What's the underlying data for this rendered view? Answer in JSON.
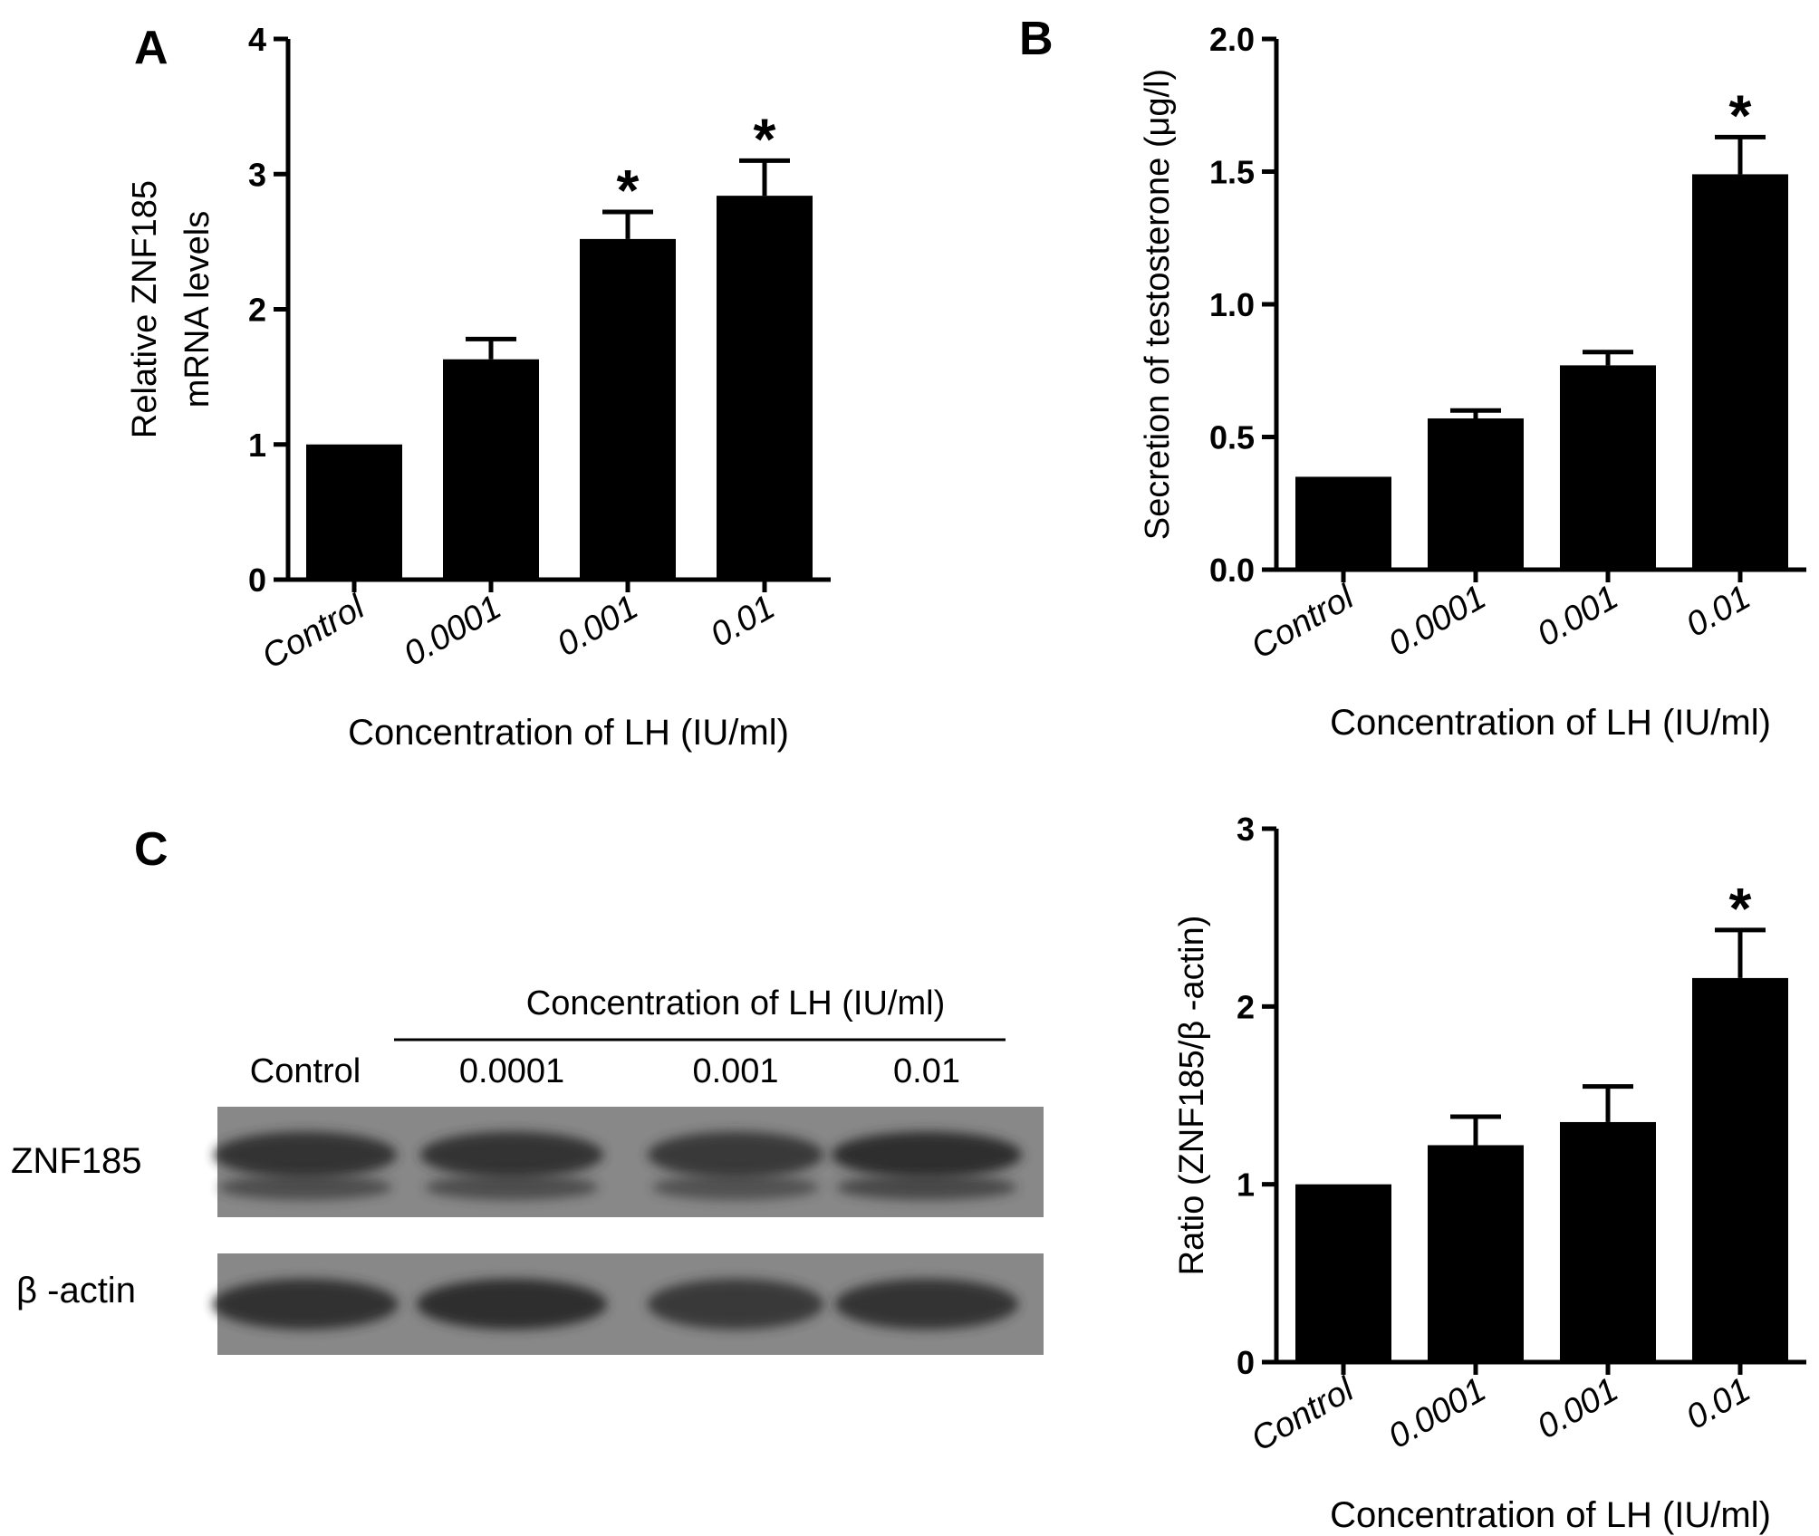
{
  "colors": {
    "bar": "#000000",
    "axis": "#000000",
    "blot_background": "#888888",
    "blot_band": "#2f2f2f"
  },
  "panels": {
    "A": {
      "letter": "A"
    },
    "B": {
      "letter": "B"
    },
    "C": {
      "letter": "C"
    }
  },
  "chart_data": [
    {
      "id": "A",
      "type": "bar",
      "categories": [
        "Control",
        "0.0001",
        "0.001",
        "0.01"
      ],
      "values": [
        1.0,
        1.63,
        2.52,
        2.84
      ],
      "errors": [
        0.0,
        0.15,
        0.2,
        0.26
      ],
      "significant": [
        false,
        false,
        true,
        true
      ],
      "significance_marker": "*",
      "ylim": [
        0,
        4
      ],
      "yticks": [
        "0",
        "1",
        "2",
        "3",
        "4"
      ],
      "ylabel_lines": [
        "Relative ZNF185",
        "mRNA levels"
      ],
      "xlabel": "Concentration of LH (IU/ml)"
    },
    {
      "id": "B",
      "type": "bar",
      "categories": [
        "Control",
        "0.0001",
        "0.001",
        "0.01"
      ],
      "values": [
        0.35,
        0.57,
        0.77,
        1.49
      ],
      "errors": [
        0.0,
        0.03,
        0.05,
        0.14
      ],
      "significant": [
        false,
        false,
        false,
        true
      ],
      "significance_marker": "*",
      "ylim": [
        0,
        2.0
      ],
      "yticks": [
        "0.0",
        "0.5",
        "1.0",
        "1.5",
        "2.0"
      ],
      "ylabel_lines": [
        "Secretion of testosterone (μg/l)"
      ],
      "xlabel": "Concentration of LH (IU/ml)"
    },
    {
      "id": "C",
      "type": "bar",
      "categories": [
        "Control",
        "0.0001",
        "0.001",
        "0.01"
      ],
      "values": [
        1.0,
        1.22,
        1.35,
        2.16
      ],
      "errors": [
        0.0,
        0.16,
        0.2,
        0.27
      ],
      "significant": [
        false,
        false,
        false,
        true
      ],
      "significance_marker": "*",
      "ylim": [
        0,
        3
      ],
      "yticks": [
        "0",
        "1",
        "2",
        "3"
      ],
      "ylabel_lines": [
        "Ratio (ZNF185/β -actin)"
      ],
      "xlabel": "Concentration of LH (IU/ml)"
    }
  ],
  "western_blot": {
    "header": "Concentration of LH (IU/ml)",
    "lanes": [
      "Control",
      "0.0001",
      "0.001",
      "0.01"
    ],
    "rows": [
      {
        "label": "ZNF185",
        "intensity": [
          0.85,
          0.85,
          0.7,
          1.0
        ]
      },
      {
        "label": "β -actin",
        "intensity": [
          0.9,
          1.0,
          0.7,
          0.85
        ]
      }
    ]
  }
}
